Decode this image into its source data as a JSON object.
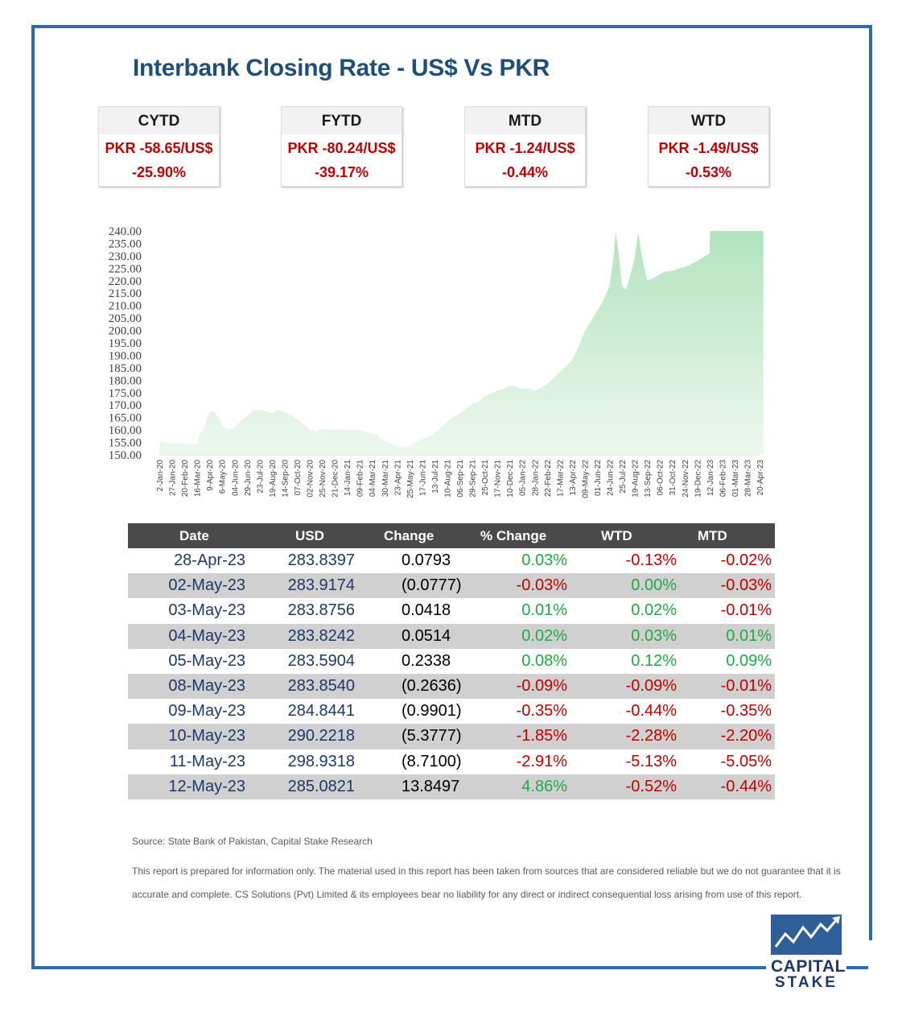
{
  "title": "Interbank Closing Rate - US$ Vs PKR",
  "kpis": [
    {
      "label": "CYTD",
      "value": "PKR -58.65/US$",
      "pct": "-25.90%"
    },
    {
      "label": "FYTD",
      "value": "PKR -80.24/US$",
      "pct": "-39.17%"
    },
    {
      "label": "MTD",
      "value": "PKR -1.24/US$",
      "pct": "-0.44%"
    },
    {
      "label": "WTD",
      "value": "PKR -1.49/US$",
      "pct": "-0.53%"
    }
  ],
  "chart_data": {
    "type": "area",
    "title": "",
    "xlabel": "",
    "ylabel": "",
    "ylim": [
      150,
      240
    ],
    "yticks": [
      "150.00",
      "155.00",
      "160.00",
      "165.00",
      "170.00",
      "175.00",
      "180.00",
      "185.00",
      "190.00",
      "195.00",
      "200.00",
      "205.00",
      "210.00",
      "215.00",
      "220.00",
      "225.00",
      "230.00",
      "235.00",
      "240.00"
    ],
    "xticks": [
      "2-Jan-20",
      "27-Jan-20",
      "20-Feb-20",
      "16-Mar-20",
      "9-Apr-20",
      "6-May-20",
      "04-Jun-20",
      "29-Jun-20",
      "23-Jul-20",
      "19-Aug-20",
      "14-Sep-20",
      "07-Oct-20",
      "02-Nov-20",
      "25-Nov-20",
      "21-Dec-20",
      "14-Jan-21",
      "09-Feb-21",
      "04-Mar-21",
      "30-Mar-21",
      "23-Apr-21",
      "25-May-21",
      "17-Jun-21",
      "13-Jul-21",
      "10-Aug-21",
      "06-Sep-21",
      "29-Sep-21",
      "25-Oct-21",
      "17-Nov-21",
      "10-Dec-21",
      "05-Jan-22",
      "28-Jan-22",
      "22-Feb-22",
      "17-Mar-22",
      "13-Apr-22",
      "09-May-22",
      "01-Jun-22",
      "24-Jun-22",
      "25-Jul-22",
      "19-Aug-22",
      "13-Sep-22",
      "06-Oct-22",
      "31-Oct-22",
      "24-Nov-22",
      "19-Dec-22",
      "12-Jan-23",
      "06-Feb-23",
      "01-Mar-23",
      "28-Mar-23",
      "20-Apr-23"
    ],
    "series": [
      {
        "name": "USD/PKR",
        "points": [
          [
            0,
            155.2
          ],
          [
            0.3,
            154.9
          ],
          [
            1,
            154.6
          ],
          [
            1.5,
            154.6
          ],
          [
            2.3,
            154.4
          ],
          [
            2.7,
            154.5
          ],
          [
            3,
            154.3
          ],
          [
            3.2,
            158.0
          ],
          [
            3.5,
            160.1
          ],
          [
            3.8,
            164.0
          ],
          [
            4.0,
            167.0
          ],
          [
            4.3,
            167.5
          ],
          [
            4.5,
            166.5
          ],
          [
            4.8,
            164.5
          ],
          [
            5,
            161.5
          ],
          [
            5.5,
            160.2
          ],
          [
            6,
            160.8
          ],
          [
            6.5,
            163.5
          ],
          [
            7,
            165.5
          ],
          [
            7.5,
            167.8
          ],
          [
            8,
            168.1
          ],
          [
            8.5,
            167.4
          ],
          [
            9,
            166.6
          ],
          [
            9.5,
            168.0
          ],
          [
            10,
            167.2
          ],
          [
            10.5,
            166.0
          ],
          [
            11,
            164.5
          ],
          [
            11.5,
            162.2
          ],
          [
            12,
            160.1
          ],
          [
            12.5,
            159.3
          ],
          [
            13,
            160.3
          ],
          [
            13.5,
            160.5
          ],
          [
            14,
            160.1
          ],
          [
            14.5,
            160.3
          ],
          [
            15,
            160.0
          ],
          [
            15.5,
            160.2
          ],
          [
            16,
            159.7
          ],
          [
            16.5,
            159.3
          ],
          [
            17,
            158.5
          ],
          [
            17.5,
            157.8
          ],
          [
            18,
            155.5
          ],
          [
            18.5,
            154.6
          ],
          [
            19,
            153.5
          ],
          [
            19.5,
            153.1
          ],
          [
            20,
            153.6
          ],
          [
            20.5,
            155.2
          ],
          [
            21,
            156.4
          ],
          [
            21.5,
            157.2
          ],
          [
            22,
            158.5
          ],
          [
            22.5,
            160.8
          ],
          [
            23,
            163.1
          ],
          [
            23.5,
            165.2
          ],
          [
            24,
            166.6
          ],
          [
            24.5,
            168.5
          ],
          [
            25,
            170.5
          ],
          [
            25.5,
            171.3
          ],
          [
            26,
            173.5
          ],
          [
            26.5,
            174.8
          ],
          [
            27,
            175.6
          ],
          [
            27.5,
            176.5
          ],
          [
            28,
            177.8
          ],
          [
            28.5,
            177.6
          ],
          [
            29,
            176.5
          ],
          [
            29.5,
            176.8
          ],
          [
            30,
            175.8
          ],
          [
            30.5,
            176.8
          ],
          [
            31,
            178.4
          ],
          [
            31.5,
            180.8
          ],
          [
            32,
            183.1
          ],
          [
            32.5,
            185.5
          ],
          [
            33,
            188.0
          ],
          [
            33.5,
            193.2
          ],
          [
            34,
            199.5
          ],
          [
            34.5,
            203.5
          ],
          [
            35,
            207.9
          ],
          [
            35.5,
            212.0
          ],
          [
            36,
            217.8
          ],
          [
            36.3,
            229.0
          ],
          [
            36.5,
            239.4
          ],
          [
            36.8,
            228.0
          ],
          [
            37,
            218.0
          ],
          [
            37.3,
            216.5
          ],
          [
            37.6,
            221.0
          ],
          [
            38,
            229.0
          ],
          [
            38.3,
            239.4
          ],
          [
            38.6,
            229.5
          ],
          [
            39,
            220.2
          ],
          [
            39.5,
            221.0
          ],
          [
            40,
            222.6
          ],
          [
            40.5,
            223.7
          ],
          [
            41,
            224.0
          ],
          [
            41.5,
            224.8
          ],
          [
            42,
            225.5
          ],
          [
            42.5,
            226.6
          ],
          [
            43,
            227.9
          ],
          [
            43.5,
            229.5
          ],
          [
            44,
            231.0
          ],
          [
            44.05,
            240.0
          ],
          [
            45,
            240.0
          ],
          [
            46,
            240.0
          ],
          [
            47,
            240.0
          ],
          [
            48,
            240.0
          ],
          [
            48.3,
            240.0
          ]
        ]
      }
    ]
  },
  "table": {
    "headers": [
      "Date",
      "USD",
      "Change",
      "% Change",
      "WTD",
      "MTD"
    ],
    "rows": [
      {
        "date": "28-Apr-23",
        "usd": "283.8397",
        "change": "0.0793",
        "pct": "0.03%",
        "wtd": "-0.13%",
        "mtd": "-0.02%"
      },
      {
        "date": "02-May-23",
        "usd": "283.9174",
        "change": "(0.0777)",
        "pct": "-0.03%",
        "wtd": "0.00%",
        "mtd": "-0.03%"
      },
      {
        "date": "03-May-23",
        "usd": "283.8756",
        "change": "0.0418",
        "pct": "0.01%",
        "wtd": "0.02%",
        "mtd": "-0.01%"
      },
      {
        "date": "04-May-23",
        "usd": "283.8242",
        "change": "0.0514",
        "pct": "0.02%",
        "wtd": "0.03%",
        "mtd": "0.01%"
      },
      {
        "date": "05-May-23",
        "usd": "283.5904",
        "change": "0.2338",
        "pct": "0.08%",
        "wtd": "0.12%",
        "mtd": "0.09%"
      },
      {
        "date": "08-May-23",
        "usd": "283.8540",
        "change": "(0.2636)",
        "pct": "-0.09%",
        "wtd": "-0.09%",
        "mtd": "-0.01%"
      },
      {
        "date": "09-May-23",
        "usd": "284.8441",
        "change": "(0.9901)",
        "pct": "-0.35%",
        "wtd": "-0.44%",
        "mtd": "-0.35%"
      },
      {
        "date": "10-May-23",
        "usd": "290.2218",
        "change": "(5.3777)",
        "pct": "-1.85%",
        "wtd": "-2.28%",
        "mtd": "-2.20%"
      },
      {
        "date": "11-May-23",
        "usd": "298.9318",
        "change": "(8.7100)",
        "pct": "-2.91%",
        "wtd": "-5.13%",
        "mtd": "-5.05%"
      },
      {
        "date": "12-May-23",
        "usd": "285.0821",
        "change": "13.8497",
        "pct": "4.86%",
        "wtd": "-0.52%",
        "mtd": "-0.44%"
      }
    ]
  },
  "source": "Source: State Bank of Pakistan, Capital Stake Research",
  "disclaimer": "This report is prepared for information only. The material used in this report has been taken from sources that are considered reliable but we do not guarantee that it is accurate and complete. CS Solutions (Pvt) Limited & its employees bear no liability for any direct or indirect consequential loss arising from use of this report.",
  "logo": {
    "line1": "CAPITAL",
    "line2": "STAKE"
  },
  "colors": {
    "frame": "#2f6aad",
    "title": "#1f4e79",
    "negative": "#c00000",
    "positive": "#22a844",
    "area_top": "#b5e4bf",
    "area_bottom": "#eef8f0"
  }
}
